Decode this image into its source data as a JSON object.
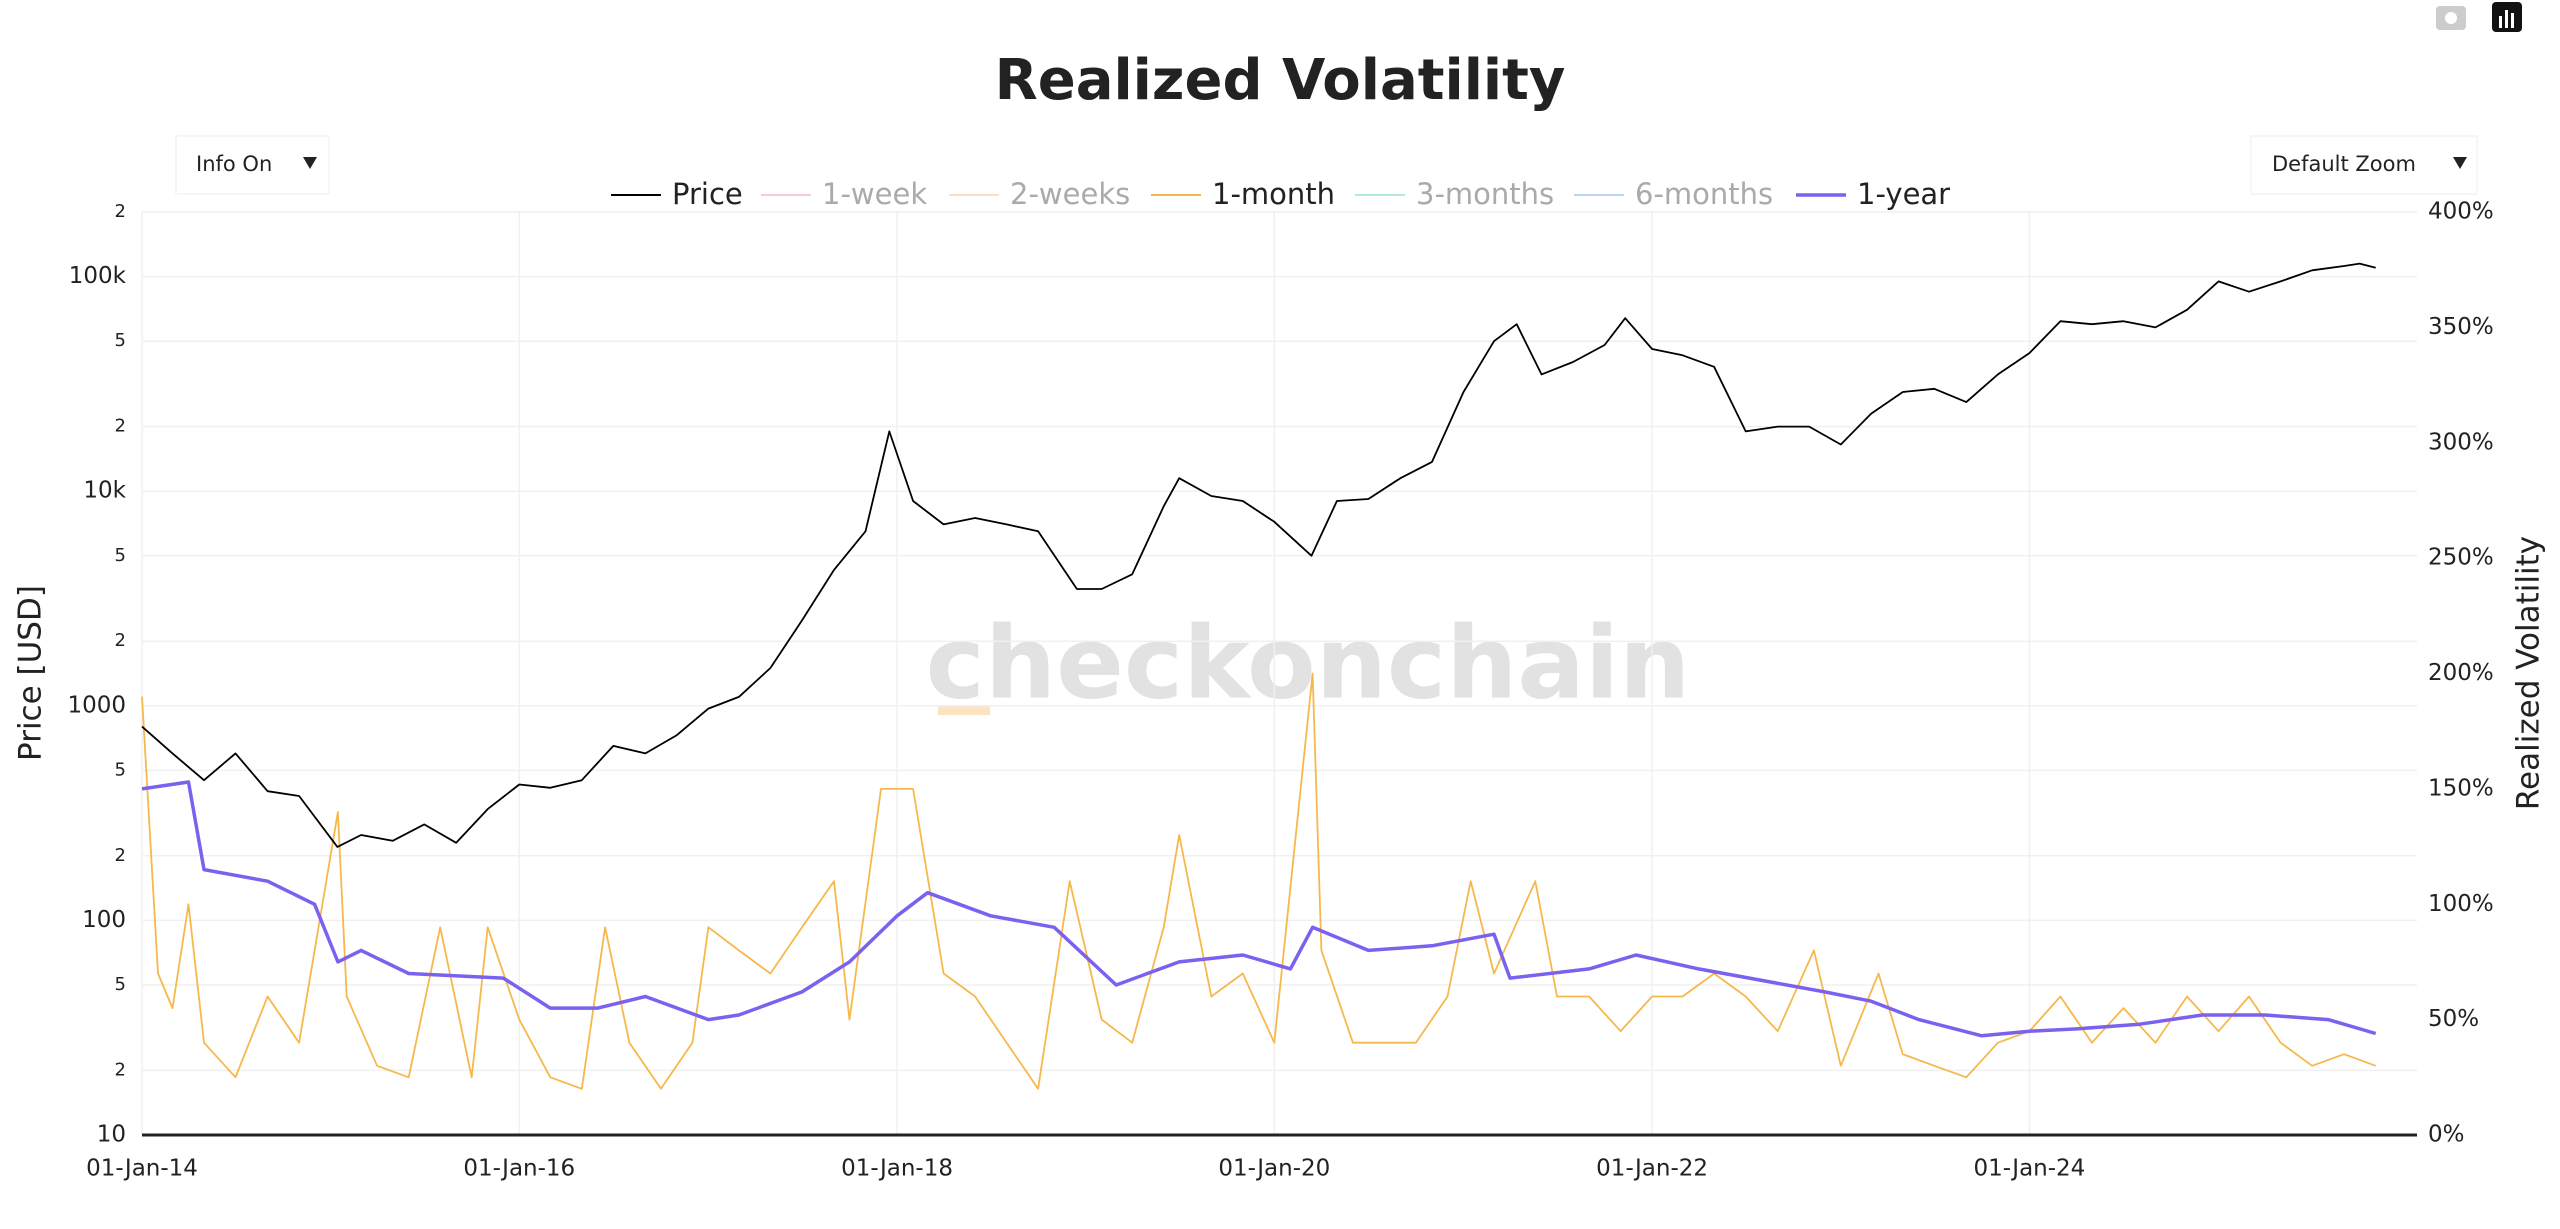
{
  "chart_data": {
    "type": "line",
    "title": "Realized Volatility",
    "controls": {
      "info": "Info On",
      "zoom": "Default Zoom"
    },
    "watermark": "checkonchain",
    "ylabel": "Price [USD]",
    "y2label": "Realized Volatility",
    "log_y": true,
    "grid": true,
    "xlim": [
      "2014-01-01",
      "2026-01-20"
    ],
    "xticks": [
      {
        "value": "2014-01-01",
        "label": "01-Jan-14"
      },
      {
        "value": "2016-01-01",
        "label": "01-Jan-16"
      },
      {
        "value": "2018-01-01",
        "label": "01-Jan-18"
      },
      {
        "value": "2020-01-01",
        "label": "01-Jan-20"
      },
      {
        "value": "2022-01-01",
        "label": "01-Jan-22"
      },
      {
        "value": "2024-01-01",
        "label": "01-Jan-24"
      }
    ],
    "ylim": [
      10,
      200000
    ],
    "yticks": [
      10,
      {
        "value": 20,
        "label": "2"
      },
      {
        "value": 50,
        "label": "5"
      },
      100,
      {
        "value": 200,
        "label": "2"
      },
      {
        "value": 500,
        "label": "5"
      },
      1000,
      {
        "value": 2000,
        "label": "2"
      },
      {
        "value": 5000,
        "label": "5"
      },
      {
        "value": 10000,
        "label": "10k"
      },
      {
        "value": 20000,
        "label": "2"
      },
      {
        "value": 50000,
        "label": "5"
      },
      {
        "value": 100000,
        "label": "100k"
      },
      {
        "value": 200000,
        "label": "2"
      }
    ],
    "y2lim": [
      0,
      400
    ],
    "y2ticks": [
      {
        "value": 0,
        "label": "0%"
      },
      {
        "value": 50,
        "label": "50%"
      },
      {
        "value": 100,
        "label": "100%"
      },
      {
        "value": 150,
        "label": "150%"
      },
      {
        "value": 200,
        "label": "200%"
      },
      {
        "value": 250,
        "label": "250%"
      },
      {
        "value": 300,
        "label": "300%"
      },
      {
        "value": 350,
        "label": "350%"
      },
      {
        "value": 400,
        "label": "400%"
      }
    ],
    "series": [
      {
        "name": "Price",
        "color": "#000000",
        "visible": true,
        "x": [
          "2014-01-01",
          "2014-03-01",
          "2014-05-01",
          "2014-07-01",
          "2014-09-01",
          "2014-11-01",
          "2015-01-14",
          "2015-03-01",
          "2015-05-01",
          "2015-07-01",
          "2015-09-01",
          "2015-11-01",
          "2016-01-01",
          "2016-03-01",
          "2016-05-01",
          "2016-07-01",
          "2016-09-01",
          "2016-11-01",
          "2017-01-01",
          "2017-03-01",
          "2017-05-01",
          "2017-07-01",
          "2017-09-01",
          "2017-11-01",
          "2017-12-17",
          "2018-02-01",
          "2018-04-01",
          "2018-06-01",
          "2018-08-01",
          "2018-10-01",
          "2018-12-15",
          "2019-02-01",
          "2019-04-01",
          "2019-06-01",
          "2019-07-01",
          "2019-09-01",
          "2019-11-01",
          "2020-01-01",
          "2020-03-13",
          "2020-05-01",
          "2020-07-01",
          "2020-09-01",
          "2020-11-01",
          "2021-01-01",
          "2021-03-01",
          "2021-04-14",
          "2021-06-01",
          "2021-08-01",
          "2021-10-01",
          "2021-11-10",
          "2022-01-01",
          "2022-03-01",
          "2022-05-01",
          "2022-07-01",
          "2022-09-01",
          "2022-11-01",
          "2023-01-01",
          "2023-03-01",
          "2023-05-01",
          "2023-07-01",
          "2023-09-01",
          "2023-11-01",
          "2024-01-01",
          "2024-03-01",
          "2024-05-01",
          "2024-07-01",
          "2024-09-01",
          "2024-11-01",
          "2025-01-01",
          "2025-03-01",
          "2025-05-01",
          "2025-07-01",
          "2025-09-01",
          "2025-10-01",
          "2025-11-01"
        ],
        "values": [
          800,
          600,
          450,
          600,
          400,
          380,
          220,
          250,
          235,
          280,
          230,
          330,
          430,
          415,
          450,
          650,
          600,
          730,
          970,
          1100,
          1500,
          2500,
          4300,
          6500,
          19000,
          9000,
          7000,
          7500,
          7000,
          6500,
          3500,
          3500,
          4100,
          8500,
          11500,
          9500,
          9000,
          7200,
          5000,
          9000,
          9200,
          11500,
          13700,
          29000,
          50000,
          60000,
          35000,
          40000,
          48000,
          64000,
          46000,
          43000,
          38000,
          19000,
          20000,
          20000,
          16500,
          23000,
          29000,
          30000,
          26000,
          35000,
          44000,
          62000,
          60000,
          62000,
          58000,
          70000,
          95000,
          85000,
          95000,
          107000,
          112000,
          115000,
          110000
        ]
      },
      {
        "name": "1-week",
        "color": "#f4a7bb",
        "visible": false
      },
      {
        "name": "2-weeks",
        "color": "#f7c9a0",
        "visible": false
      },
      {
        "name": "1-month",
        "color": "#f7b84b",
        "visible": true,
        "axis": "y2",
        "x": [
          "2014-01-01",
          "2014-02-01",
          "2014-03-01",
          "2014-04-01",
          "2014-05-01",
          "2014-07-01",
          "2014-09-01",
          "2014-11-01",
          "2015-01-15",
          "2015-02-01",
          "2015-04-01",
          "2015-06-01",
          "2015-08-01",
          "2015-10-01",
          "2015-11-01",
          "2016-01-01",
          "2016-03-01",
          "2016-05-01",
          "2016-06-15",
          "2016-08-01",
          "2016-10-01",
          "2016-12-01",
          "2017-01-01",
          "2017-03-01",
          "2017-05-01",
          "2017-07-01",
          "2017-09-01",
          "2017-10-01",
          "2017-12-01",
          "2018-02-01",
          "2018-04-01",
          "2018-06-01",
          "2018-08-01",
          "2018-10-01",
          "2018-12-01",
          "2019-02-01",
          "2019-04-01",
          "2019-06-01",
          "2019-07-01",
          "2019-09-01",
          "2019-11-01",
          "2020-01-01",
          "2020-03-15",
          "2020-04-01",
          "2020-06-01",
          "2020-08-01",
          "2020-10-01",
          "2020-12-01",
          "2021-01-15",
          "2021-03-01",
          "2021-05-20",
          "2021-07-01",
          "2021-09-01",
          "2021-11-01",
          "2022-01-01",
          "2022-03-01",
          "2022-05-01",
          "2022-07-01",
          "2022-09-01",
          "2022-11-10",
          "2023-01-01",
          "2023-03-15",
          "2023-05-01",
          "2023-07-01",
          "2023-09-01",
          "2023-11-01",
          "2024-01-01",
          "2024-03-01",
          "2024-05-01",
          "2024-07-01",
          "2024-09-01",
          "2024-11-01",
          "2025-01-01",
          "2025-03-01",
          "2025-05-01",
          "2025-07-01",
          "2025-09-01",
          "2025-11-01"
        ],
        "values": [
          190,
          70,
          55,
          100,
          40,
          25,
          60,
          40,
          140,
          60,
          30,
          25,
          90,
          25,
          90,
          50,
          25,
          20,
          90,
          40,
          20,
          40,
          90,
          80,
          70,
          90,
          110,
          50,
          150,
          150,
          70,
          60,
          40,
          20,
          110,
          50,
          40,
          90,
          130,
          60,
          70,
          40,
          200,
          80,
          40,
          40,
          40,
          60,
          110,
          70,
          110,
          60,
          60,
          45,
          60,
          60,
          70,
          60,
          45,
          80,
          30,
          70,
          35,
          30,
          25,
          40,
          45,
          60,
          40,
          55,
          40,
          60,
          45,
          60,
          40,
          30,
          35,
          30
        ]
      },
      {
        "name": "3-months",
        "color": "#7fdcc0",
        "visible": false
      },
      {
        "name": "6-months",
        "color": "#8fb8f5",
        "visible": false
      },
      {
        "name": "1-year",
        "color": "#7b61f0",
        "visible": true,
        "axis": "y2",
        "x": [
          "2014-01-01",
          "2014-04-01",
          "2014-05-01",
          "2014-09-01",
          "2014-12-01",
          "2015-01-15",
          "2015-03-01",
          "2015-06-01",
          "2015-12-01",
          "2016-03-01",
          "2016-06-01",
          "2016-09-01",
          "2017-01-01",
          "2017-03-01",
          "2017-07-01",
          "2017-10-01",
          "2018-01-01",
          "2018-03-01",
          "2018-07-01",
          "2018-11-01",
          "2019-03-01",
          "2019-07-01",
          "2019-11-01",
          "2020-02-01",
          "2020-03-15",
          "2020-07-01",
          "2020-11-01",
          "2021-03-01",
          "2021-04-01",
          "2021-09-01",
          "2021-12-01",
          "2022-04-01",
          "2022-08-01",
          "2022-12-01",
          "2023-03-01",
          "2023-06-01",
          "2023-10-01",
          "2024-01-01",
          "2024-04-01",
          "2024-08-01",
          "2024-12-01",
          "2025-04-01",
          "2025-08-01",
          "2025-11-01"
        ],
        "values": [
          150,
          153,
          115,
          110,
          100,
          75,
          80,
          70,
          68,
          55,
          55,
          60,
          50,
          52,
          62,
          75,
          95,
          105,
          95,
          90,
          65,
          75,
          78,
          72,
          90,
          80,
          82,
          87,
          68,
          72,
          78,
          72,
          67,
          62,
          58,
          50,
          43,
          45,
          46,
          48,
          52,
          52,
          50,
          44
        ]
      }
    ]
  }
}
